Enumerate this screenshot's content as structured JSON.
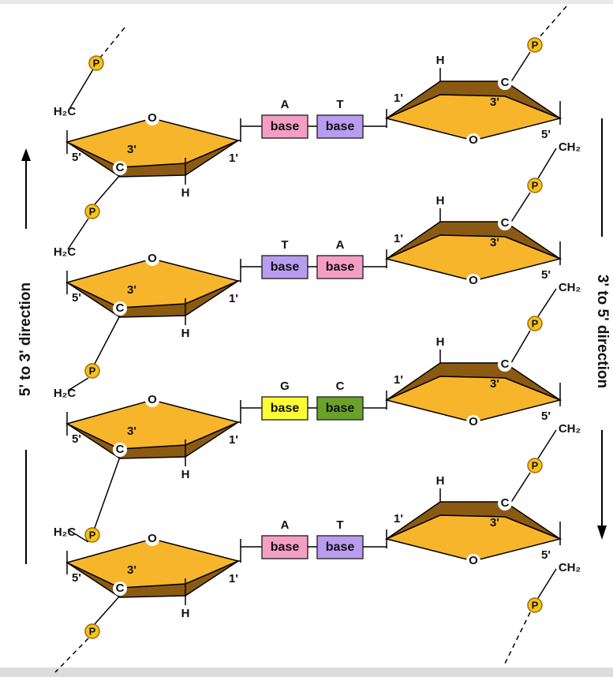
{
  "left_label": "5' to 3' direction",
  "right_label": "3' to 5' direction",
  "left_phosphates": [
    "P",
    "P",
    "P",
    "P",
    "P"
  ],
  "right_phosphates": [
    "P",
    "P",
    "P",
    "P",
    "P"
  ],
  "rows": [
    {
      "left": {
        "group": "H₂C",
        "o": "O",
        "c": "C",
        "h": "H",
        "c5": "5'",
        "c3": "3'",
        "c1": "1'"
      },
      "pair": [
        {
          "letter": "A",
          "label": "base",
          "color": "#f59ec4"
        },
        {
          "letter": "T",
          "label": "base",
          "color": "#b89cf0"
        }
      ],
      "right": {
        "h": "H",
        "c": "C",
        "c3": "3'",
        "c1": "1'",
        "o": "O",
        "c5": "5'",
        "group": "CH₂"
      }
    },
    {
      "left": {
        "group": "H₂C",
        "o": "O",
        "c": "C",
        "h": "H",
        "c5": "5'",
        "c3": "3'",
        "c1": "1'"
      },
      "pair": [
        {
          "letter": "T",
          "label": "base",
          "color": "#b89cf0"
        },
        {
          "letter": "A",
          "label": "base",
          "color": "#f59ec4"
        }
      ],
      "right": {
        "h": "H",
        "c": "C",
        "c3": "3'",
        "c1": "1'",
        "o": "O",
        "c5": "5'",
        "group": "CH₂"
      }
    },
    {
      "left": {
        "group": "H₂C",
        "o": "O",
        "c": "C",
        "h": "H",
        "c5": "5'",
        "c3": "3'",
        "c1": "1'"
      },
      "pair": [
        {
          "letter": "G",
          "label": "base",
          "color": "#ffff33"
        },
        {
          "letter": "C",
          "label": "base",
          "color": "#69a22a"
        }
      ],
      "right": {
        "h": "H",
        "c": "C",
        "c3": "3'",
        "c1": "1'",
        "o": "O",
        "c5": "5'",
        "group": "CH₂"
      }
    },
    {
      "left": {
        "group": "H₂C",
        "o": "O",
        "c": "C",
        "h": "H",
        "c5": "5'",
        "c3": "3'",
        "c1": "1'"
      },
      "pair": [
        {
          "letter": "A",
          "label": "base",
          "color": "#f59ec4"
        },
        {
          "letter": "T",
          "label": "base",
          "color": "#b89cf0"
        }
      ],
      "right": {
        "h": "H",
        "c": "C",
        "c3": "3'",
        "c1": "1'",
        "o": "O",
        "c5": "5'",
        "group": "CH₂"
      }
    }
  ]
}
